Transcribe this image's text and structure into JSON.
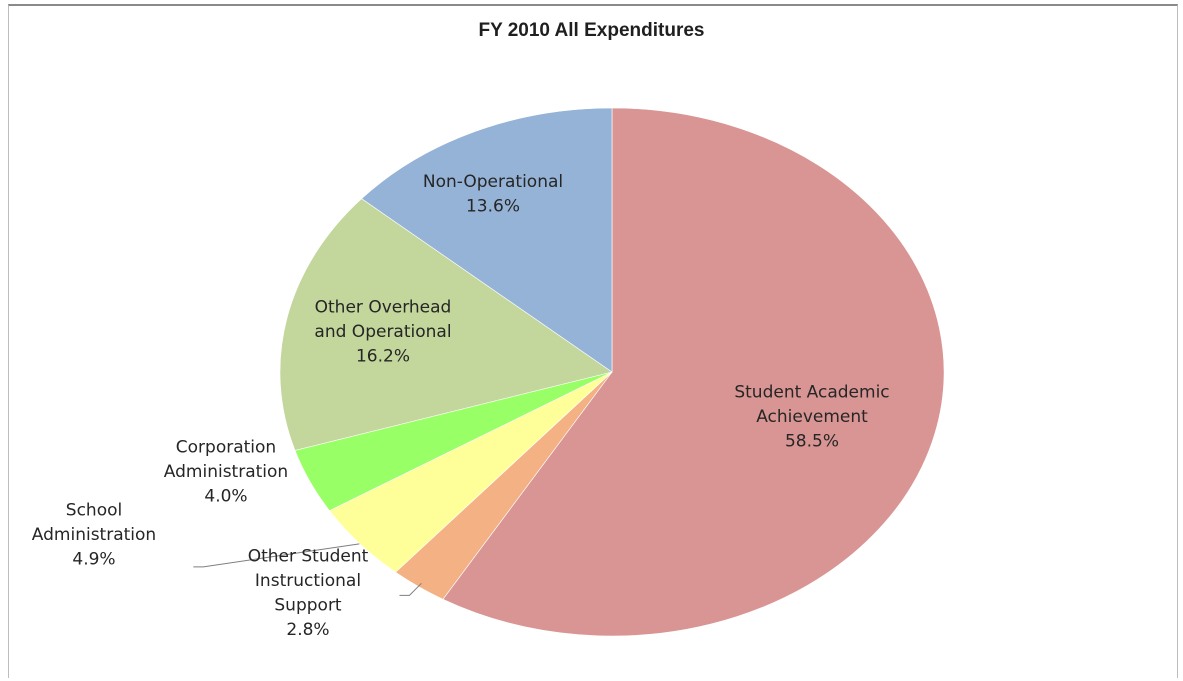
{
  "chart_data": {
    "type": "pie",
    "title": "FY 2010 All Expenditures",
    "slices": [
      {
        "name": "Student Academic Achievement",
        "label_lines": [
          "Student Academic",
          "Achievement"
        ],
        "value": 58.5,
        "value_label": "58.5%",
        "color": "#d99594"
      },
      {
        "name": "Other Student Instructional Support",
        "label_lines": [
          "Other Student",
          "Instructional",
          "Support"
        ],
        "value": 2.8,
        "value_label": "2.8%",
        "color": "#f4b183"
      },
      {
        "name": "School Administration",
        "label_lines": [
          "School",
          "Administration"
        ],
        "value": 4.9,
        "value_label": "4.9%",
        "color": "#ffff99"
      },
      {
        "name": "Corporation Administration",
        "label_lines": [
          "Corporation",
          "Administration"
        ],
        "value": 4.0,
        "value_label": "4.0%",
        "color": "#99ff66"
      },
      {
        "name": "Other Overhead and Operational",
        "label_lines": [
          "Other Overhead",
          "and Operational"
        ],
        "value": 16.2,
        "value_label": "16.2%",
        "color": "#c3d69b"
      },
      {
        "name": "Non-Operational",
        "label_lines": [
          "Non-Operational"
        ],
        "value": 13.6,
        "value_label": "13.6%",
        "color": "#95b3d7"
      }
    ],
    "legend": "none",
    "start": "top",
    "direction": "clockwise"
  }
}
